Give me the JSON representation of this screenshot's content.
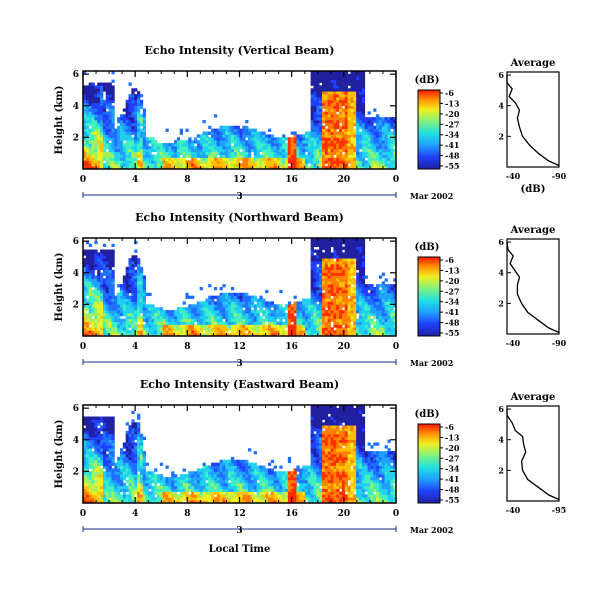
{
  "chart_data": [
    {
      "type": "heatmap",
      "title": "Echo Intensity (Vertical Beam)",
      "ylabel": "Height (km)",
      "x_ticks": [
        "0",
        "4",
        "8",
        "12",
        "16",
        "20",
        "0"
      ],
      "y_ticks": [
        "2",
        "4",
        "6"
      ],
      "date_day": "3",
      "date_month": "Mar 2002",
      "colorbar": {
        "label": "(dB)",
        "ticks": [
          "-6",
          "-13",
          "-20",
          "-27",
          "-34",
          "-41",
          "-48",
          "-55"
        ]
      },
      "average": {
        "title": "Average",
        "xlabel": "(dB)",
        "x_ticks": [
          "-40",
          "-90"
        ],
        "y_ticks": [
          "2",
          "4",
          "6"
        ],
        "profile": [
          [
            -90,
            0.1
          ],
          [
            -80,
            0.4
          ],
          [
            -70,
            0.9
          ],
          [
            -62,
            1.4
          ],
          [
            -55,
            2.0
          ],
          [
            -52,
            2.6
          ],
          [
            -50,
            3.2
          ],
          [
            -52,
            3.7
          ],
          [
            -48,
            4.2
          ],
          [
            -42,
            4.6
          ],
          [
            -45,
            5.1
          ],
          [
            -40,
            5.5
          ],
          [
            -40,
            6.0
          ]
        ]
      }
    },
    {
      "type": "heatmap",
      "title": "Echo Intensity (Northward Beam)",
      "ylabel": "Height (km)",
      "x_ticks": [
        "0",
        "4",
        "8",
        "12",
        "16",
        "20",
        "0"
      ],
      "y_ticks": [
        "2",
        "4",
        "6"
      ],
      "date_day": "3",
      "date_month": "Mar 2002",
      "colorbar": {
        "label": "(dB)",
        "ticks": [
          "-6",
          "-13",
          "-20",
          "-27",
          "-34",
          "-41",
          "-48",
          "-55"
        ]
      },
      "average": {
        "title": "Average",
        "xlabel": "",
        "x_ticks": [
          "-40",
          "-90"
        ],
        "y_ticks": [
          "2",
          "4",
          "6"
        ],
        "profile": [
          [
            -90,
            0.1
          ],
          [
            -80,
            0.4
          ],
          [
            -70,
            0.9
          ],
          [
            -60,
            1.4
          ],
          [
            -54,
            2.0
          ],
          [
            -50,
            2.6
          ],
          [
            -50,
            3.2
          ],
          [
            -52,
            3.7
          ],
          [
            -47,
            4.2
          ],
          [
            -43,
            4.6
          ],
          [
            -46,
            5.1
          ],
          [
            -41,
            5.5
          ],
          [
            -40,
            6.0
          ]
        ]
      }
    },
    {
      "type": "heatmap",
      "title": "Echo Intensity (Eastward Beam)",
      "ylabel": "Height (km)",
      "x_ticks": [
        "0",
        "4",
        "8",
        "12",
        "16",
        "20",
        "0"
      ],
      "y_ticks": [
        "2",
        "4",
        "6"
      ],
      "date_day": "3",
      "date_month": "Mar 2002",
      "xlabel": "Local Time",
      "colorbar": {
        "label": "(dB)",
        "ticks": [
          "-6",
          "-13",
          "-20",
          "-27",
          "-34",
          "-41",
          "-48",
          "-55"
        ]
      },
      "average": {
        "title": "Average",
        "xlabel": "",
        "x_ticks": [
          "-40",
          "-95"
        ],
        "y_ticks": [
          "2",
          "4",
          "6"
        ],
        "profile": [
          [
            -90,
            0.1
          ],
          [
            -80,
            0.4
          ],
          [
            -70,
            0.9
          ],
          [
            -60,
            1.4
          ],
          [
            -55,
            2.0
          ],
          [
            -54,
            2.6
          ],
          [
            -58,
            3.2
          ],
          [
            -56,
            3.7
          ],
          [
            -55,
            4.2
          ],
          [
            -48,
            4.6
          ],
          [
            -45,
            5.1
          ],
          [
            -40,
            5.6
          ],
          [
            -40,
            6.0
          ]
        ]
      }
    }
  ]
}
